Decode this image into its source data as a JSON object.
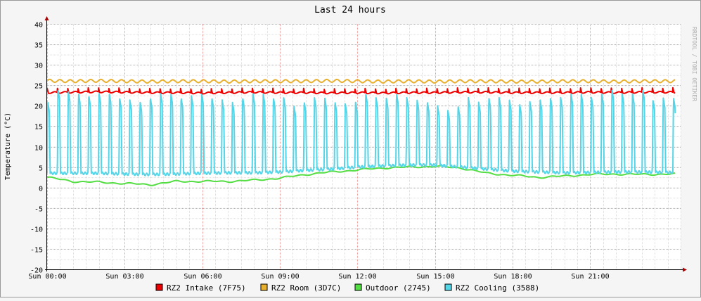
{
  "chart_data": {
    "type": "line",
    "title": "Last 24 hours",
    "xlabel": "",
    "ylabel": "Temperature (°C)",
    "side_text": "RRDTOOL / TOBI OETIKER",
    "ylim": [
      -20,
      40
    ],
    "yticks": [
      40,
      35,
      30,
      25,
      20,
      15,
      10,
      5,
      0,
      -5,
      -10,
      -15,
      -20
    ],
    "xlim_hours": [
      0,
      24.5
    ],
    "xticks": [
      {
        "hour": 0,
        "label": "Sun 00:00"
      },
      {
        "hour": 3,
        "label": "Sun 03:00"
      },
      {
        "hour": 6,
        "label": "Sun 06:00"
      },
      {
        "hour": 9,
        "label": "Sun 09:00"
      },
      {
        "hour": 12,
        "label": "Sun 12:00"
      },
      {
        "hour": 15,
        "label": "Sun 15:00"
      },
      {
        "hour": 18,
        "label": "Sun 18:00"
      },
      {
        "hour": 21,
        "label": "Sun 21:00"
      }
    ],
    "grid": true,
    "legend_position": "bottom",
    "series": [
      {
        "name": "RZ2 Intake (7F75)",
        "color": "#ee0000",
        "x_hours": [
          0,
          1,
          2,
          3,
          4,
          5,
          6,
          7,
          8,
          9,
          10,
          11,
          12,
          13,
          14,
          15,
          16,
          17,
          18,
          19,
          20,
          21,
          22,
          23,
          24
        ],
        "values": [
          23.2,
          23.3,
          23.4,
          23.3,
          23.2,
          23.2,
          23.1,
          23.2,
          23.3,
          23.2,
          23.2,
          23.1,
          23.2,
          23.1,
          23.2,
          23.2,
          23.3,
          23.3,
          23.2,
          23.2,
          23.2,
          23.3,
          23.2,
          23.3,
          23.3
        ]
      },
      {
        "name": "RZ2 Room (3D7C)",
        "color": "#e8b030",
        "x_hours": [
          0,
          1,
          2,
          3,
          4,
          5,
          6,
          7,
          8,
          9,
          10,
          11,
          12,
          13,
          14,
          15,
          16,
          17,
          18,
          19,
          20,
          21,
          22,
          23,
          24
        ],
        "values": [
          26.1,
          26.0,
          26.1,
          26.0,
          25.9,
          26.0,
          26.0,
          25.9,
          26.0,
          26.0,
          26.0,
          26.1,
          26.0,
          25.9,
          26.0,
          25.9,
          26.0,
          26.0,
          25.9,
          25.9,
          26.0,
          26.0,
          25.9,
          26.0,
          26.0
        ]
      },
      {
        "name": "Outdoor (2745)",
        "color": "#55dd44",
        "x_hours": [
          0,
          1,
          2,
          3,
          4,
          5,
          6,
          7,
          8,
          9,
          10,
          11,
          12,
          13,
          14,
          15,
          16,
          17,
          18,
          19,
          20,
          21,
          22,
          23,
          24
        ],
        "values": [
          2.5,
          1.5,
          1.3,
          1.0,
          0.7,
          1.5,
          1.5,
          1.5,
          1.8,
          2.3,
          3.2,
          3.8,
          4.3,
          4.8,
          5.0,
          5.2,
          4.8,
          3.5,
          3.0,
          2.5,
          2.8,
          3.2,
          3.3,
          3.2,
          3.3
        ]
      },
      {
        "name": "RZ2 Cooling (3588)",
        "color": "#55d5e8",
        "x_hours": [
          0,
          1,
          2,
          3,
          4,
          5,
          6,
          7,
          8,
          9,
          10,
          11,
          12,
          13,
          14,
          15,
          16,
          17,
          18,
          19,
          20,
          21,
          22,
          23,
          24
        ],
        "values": [
          3.5,
          3.5,
          3.5,
          3.3,
          3.2,
          3.3,
          3.5,
          3.6,
          3.6,
          3.8,
          4.2,
          4.5,
          5.0,
          5.3,
          5.5,
          5.5,
          5.0,
          4.5,
          4.0,
          3.8,
          3.6,
          3.7,
          3.8,
          3.8,
          3.7
        ],
        "cycle_peaks": [
          21,
          24,
          23.5,
          23,
          22.5,
          23,
          23,
          22,
          21.5,
          21,
          22,
          23,
          23,
          22,
          22.5,
          23,
          22,
          21.5,
          21,
          22,
          23,
          23,
          22,
          22,
          20,
          21,
          22,
          22,
          21,
          20.5,
          21,
          23,
          22,
          22,
          23,
          22,
          21.5,
          21,
          20,
          19,
          20,
          22,
          21,
          22,
          22,
          21.5,
          20.5,
          21,
          21.5,
          22,
          22,
          23,
          23,
          22,
          23,
          24,
          23,
          23,
          24,
          21.5,
          22
        ]
      }
    ]
  }
}
